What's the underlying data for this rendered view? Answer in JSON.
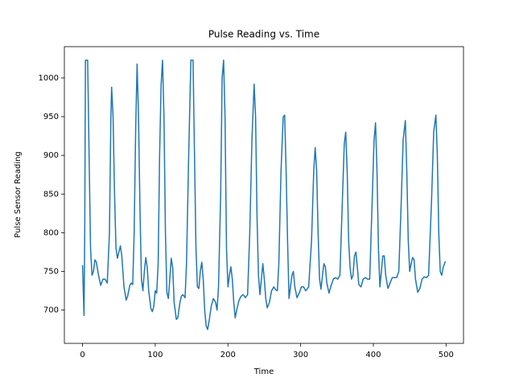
{
  "chart_data": {
    "type": "line",
    "title": "Pulse Reading vs. Time",
    "x_label": "Time",
    "y_label": "Pulse Sensor Reading",
    "color": "#1f77b4",
    "x": [
      0,
      2,
      3,
      4,
      7,
      9,
      11,
      13,
      15,
      17,
      19,
      22,
      25,
      28,
      31,
      34,
      37,
      39,
      40,
      42,
      44,
      46,
      48,
      50,
      52,
      54,
      57,
      60,
      62,
      65,
      67,
      69,
      71,
      73,
      75,
      77,
      79,
      81,
      83,
      85,
      87,
      89,
      91,
      94,
      96,
      98,
      100,
      102,
      104,
      106,
      108,
      110,
      112,
      114,
      116,
      118,
      120,
      122,
      124,
      126,
      129,
      131,
      134,
      136,
      138,
      141,
      143,
      146,
      149,
      152,
      154,
      156,
      158,
      160,
      162,
      164,
      166,
      168,
      170,
      172,
      174,
      177,
      180,
      183,
      185,
      187,
      190,
      192,
      194,
      196,
      198,
      200,
      202,
      204,
      206,
      208,
      210,
      212,
      215,
      218,
      221,
      224,
      227,
      230,
      233,
      236,
      238,
      240,
      242,
      244,
      246,
      248,
      250,
      252,
      254,
      257,
      260,
      263,
      266,
      268,
      270,
      273,
      276,
      278,
      280,
      282,
      284,
      286,
      288,
      290,
      292,
      295,
      298,
      301,
      304,
      307,
      311,
      315,
      318,
      320,
      322,
      324,
      326,
      328,
      330,
      332,
      334,
      336,
      339,
      342,
      345,
      348,
      351,
      354,
      357,
      360,
      362,
      364,
      366,
      368,
      370,
      372,
      374,
      376,
      378,
      380,
      383,
      386,
      389,
      392,
      395,
      398,
      401,
      403,
      405,
      407,
      409,
      411,
      413,
      415,
      417,
      420,
      423,
      426,
      429,
      432,
      435,
      438,
      441,
      444,
      446,
      448,
      450,
      452,
      454,
      456,
      458,
      461,
      464,
      467,
      470,
      473,
      476,
      480,
      483,
      486,
      488,
      490,
      492,
      494,
      496,
      499
    ],
    "values": [
      758,
      693,
      800,
      1023,
      1023,
      900,
      780,
      745,
      750,
      765,
      762,
      745,
      732,
      740,
      740,
      735,
      800,
      950,
      988,
      950,
      850,
      780,
      767,
      775,
      783,
      770,
      730,
      713,
      718,
      732,
      735,
      733,
      800,
      930,
      1018,
      950,
      830,
      740,
      725,
      750,
      768,
      755,
      725,
      702,
      698,
      705,
      725,
      722,
      760,
      900,
      990,
      1023,
      950,
      800,
      723,
      715,
      740,
      767,
      755,
      710,
      688,
      690,
      710,
      718,
      720,
      716,
      760,
      900,
      1023,
      1023,
      900,
      780,
      730,
      728,
      750,
      762,
      740,
      700,
      680,
      675,
      685,
      705,
      715,
      710,
      700,
      730,
      850,
      1000,
      1023,
      950,
      780,
      730,
      745,
      756,
      740,
      710,
      690,
      700,
      712,
      718,
      720,
      716,
      720,
      800,
      920,
      992,
      950,
      820,
      745,
      720,
      740,
      760,
      740,
      715,
      703,
      710,
      725,
      730,
      726,
      725,
      760,
      880,
      950,
      952,
      880,
      790,
      715,
      730,
      745,
      750,
      730,
      716,
      722,
      730,
      730,
      725,
      730,
      790,
      880,
      910,
      880,
      800,
      740,
      727,
      745,
      760,
      756,
      735,
      722,
      732,
      740,
      742,
      740,
      745,
      830,
      915,
      930,
      880,
      790,
      755,
      740,
      745,
      770,
      775,
      755,
      733,
      730,
      740,
      742,
      740,
      740,
      830,
      920,
      942,
      880,
      780,
      730,
      750,
      770,
      770,
      745,
      728,
      735,
      742,
      742,
      742,
      750,
      830,
      920,
      945,
      880,
      790,
      750,
      760,
      768,
      765,
      740,
      723,
      728,
      740,
      743,
      742,
      745,
      840,
      930,
      952,
      900,
      800,
      750,
      745,
      755,
      763
    ],
    "xlim": [
      -25,
      524
    ],
    "ylim": [
      657,
      1040.5
    ],
    "xticks": [
      0,
      100,
      200,
      300,
      400,
      500
    ],
    "yticks": [
      700,
      750,
      800,
      850,
      900,
      950,
      1000
    ]
  }
}
